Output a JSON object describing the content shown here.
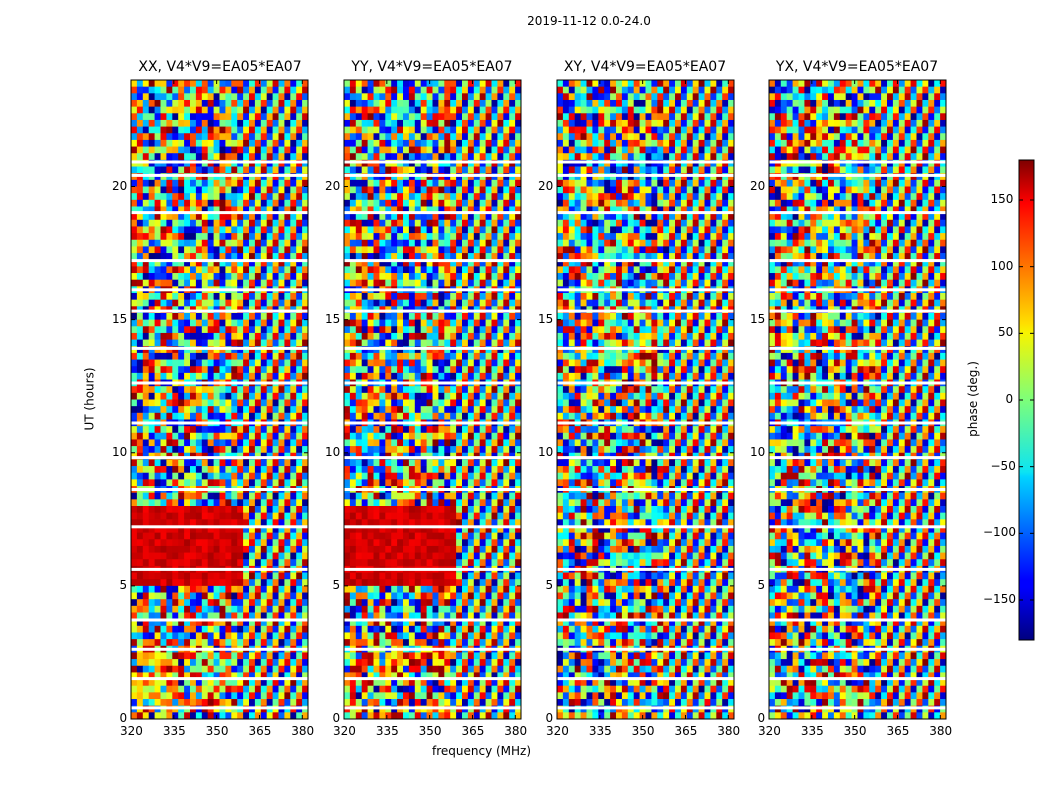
{
  "chart_data": {
    "type": "heatmap",
    "suptitle": "2019-11-12 0.0-24.0",
    "xlabel": "frequency (MHz)",
    "ylabel": "UT (hours)",
    "xlim": [
      320,
      382
    ],
    "ylim": [
      0,
      24
    ],
    "xticks": [
      320,
      335,
      350,
      365,
      380
    ],
    "yticks": [
      0,
      5,
      10,
      15,
      20
    ],
    "panels": [
      {
        "title": "XX, V4*V9=EA05*EA07",
        "correlation": "XX"
      },
      {
        "title": "YY, V4*V9=EA05*EA07",
        "correlation": "YY"
      },
      {
        "title": "XY, V4*V9=EA05*EA07",
        "correlation": "XY"
      },
      {
        "title": "YX, V4*V9=EA05*EA07",
        "correlation": "YX"
      }
    ],
    "colorbar": {
      "label": "phase (deg.)",
      "range": [
        -180,
        180
      ],
      "ticks": [
        150,
        100,
        50,
        0,
        -50,
        -100,
        -150
      ],
      "colormap": "jet"
    },
    "flagged_gaps_ut": [
      0.4,
      1.5,
      2.6,
      3.7,
      5.6,
      7.2,
      8.6,
      9.8,
      11.1,
      12.6,
      13.9,
      15.3,
      16.1,
      17.2,
      19.0,
      20.4,
      20.9
    ]
  }
}
